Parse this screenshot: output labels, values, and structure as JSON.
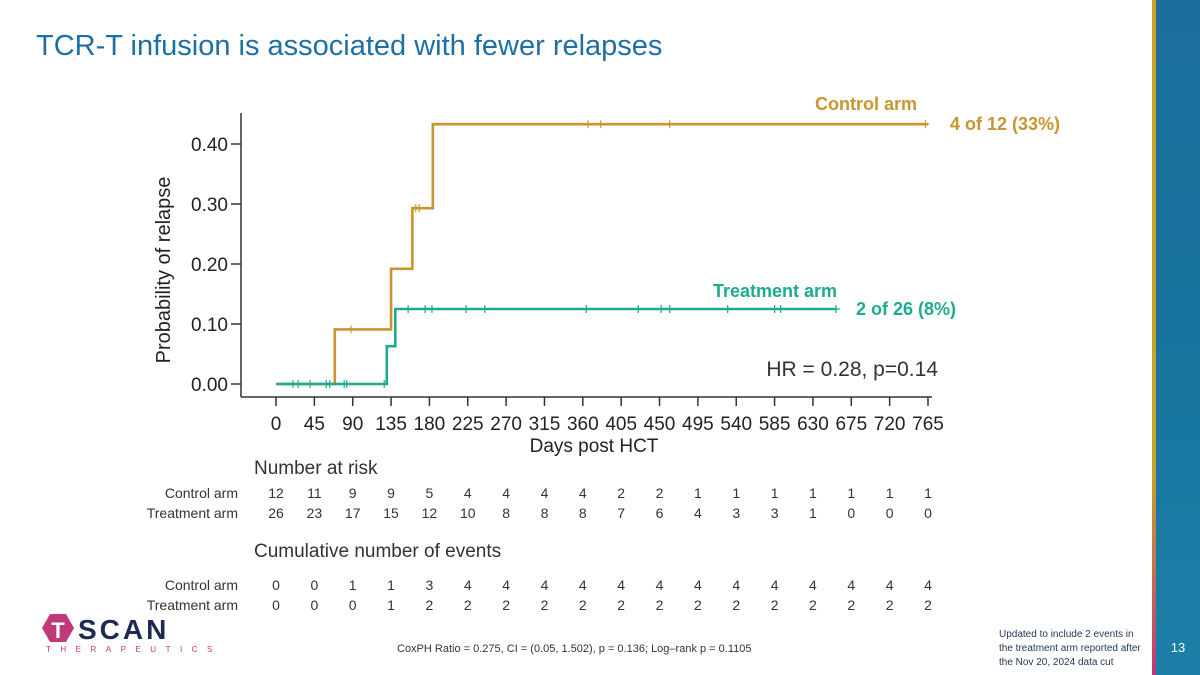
{
  "slide": {
    "title": "TCR-T infusion is associated with fewer relapses",
    "page_number": "13",
    "footnote": "Updated to include 2 events in the treatment arm reported after the Nov 20, 2024 data cut",
    "cox_text": "CoxPH Ratio = 0.275, CI = (0.05, 1.502), p = 0.136; Log–rank p = 0.1105",
    "logo_text": "SCAN",
    "logo_letter": "T",
    "logo_sub": "THERAPEUTICS"
  },
  "chart_data": {
    "type": "line",
    "xlabel": "Days post HCT",
    "ylabel": "Probability of relapse",
    "xlim": [
      0,
      765
    ],
    "ylim": [
      0,
      0.45
    ],
    "x_ticks": [
      0,
      45,
      90,
      135,
      180,
      225,
      270,
      315,
      360,
      405,
      450,
      495,
      540,
      585,
      630,
      675,
      720,
      765
    ],
    "y_ticks": [
      0.0,
      0.1,
      0.2,
      0.3,
      0.4
    ],
    "y_tick_labels": [
      "0.00",
      "0.10",
      "0.20",
      "0.30",
      "0.40"
    ],
    "hr_text": "HR = 0.28, p=0.14",
    "colors": {
      "control": "#c9952f",
      "treatment": "#1eaa8f",
      "axis": "#333333"
    },
    "series": [
      {
        "name": "Control arm",
        "end_label": "4 of 12 (33%)",
        "color": "#c9952f",
        "steps": [
          [
            0,
            0.0
          ],
          [
            69,
            0.091
          ],
          [
            135,
            0.192
          ],
          [
            160,
            0.293
          ],
          [
            184,
            0.433
          ],
          [
            765,
            0.433
          ]
        ],
        "censors": [
          [
            366,
            0.433
          ],
          [
            381,
            0.433
          ],
          [
            462,
            0.433
          ],
          [
            762,
            0.433
          ],
          [
            164,
            0.293
          ],
          [
            168,
            0.293
          ],
          [
            88,
            0.091
          ]
        ]
      },
      {
        "name": "Treatment arm",
        "end_label": "2 of 26 (8%)",
        "color": "#1eaa8f",
        "steps": [
          [
            0,
            0.0
          ],
          [
            130,
            0.0
          ],
          [
            130,
            0.063
          ],
          [
            140,
            0.063
          ],
          [
            140,
            0.125
          ],
          [
            657,
            0.125
          ]
        ],
        "censors": [
          [
            20,
            0
          ],
          [
            26,
            0
          ],
          [
            40,
            0
          ],
          [
            59,
            0
          ],
          [
            63,
            0
          ],
          [
            80,
            0
          ],
          [
            83,
            0
          ],
          [
            127,
            0
          ],
          [
            155,
            0.125
          ],
          [
            175,
            0.125
          ],
          [
            183,
            0.125
          ],
          [
            223,
            0.125
          ],
          [
            245,
            0.125
          ],
          [
            364,
            0.125
          ],
          [
            425,
            0.125
          ],
          [
            452,
            0.125
          ],
          [
            462,
            0.125
          ],
          [
            530,
            0.125
          ],
          [
            585,
            0.125
          ],
          [
            592,
            0.125
          ],
          [
            657,
            0.125
          ]
        ]
      }
    ],
    "risk_table": {
      "title": "Number at risk",
      "rows": [
        {
          "label": "Control arm",
          "values": [
            "12",
            "11",
            "9",
            "9",
            "5",
            "4",
            "4",
            "4",
            "4",
            "2",
            "2",
            "1",
            "1",
            "1",
            "1",
            "1",
            "1",
            "1"
          ]
        },
        {
          "label": "Treatment arm",
          "values": [
            "26",
            "23",
            "17",
            "15",
            "12",
            "10",
            "8",
            "8",
            "8",
            "7",
            "6",
            "4",
            "3",
            "3",
            "1",
            "0",
            "0",
            "0"
          ]
        }
      ]
    },
    "events_table": {
      "title": "Cumulative number of events",
      "rows": [
        {
          "label": "Control arm",
          "values": [
            "0",
            "0",
            "1",
            "1",
            "3",
            "4",
            "4",
            "4",
            "4",
            "4",
            "4",
            "4",
            "4",
            "4",
            "4",
            "4",
            "4",
            "4"
          ]
        },
        {
          "label": "Treatment arm",
          "values": [
            "0",
            "0",
            "0",
            "1",
            "2",
            "2",
            "2",
            "2",
            "2",
            "2",
            "2",
            "2",
            "2",
            "2",
            "2",
            "2",
            "2",
            "2"
          ]
        }
      ]
    }
  }
}
